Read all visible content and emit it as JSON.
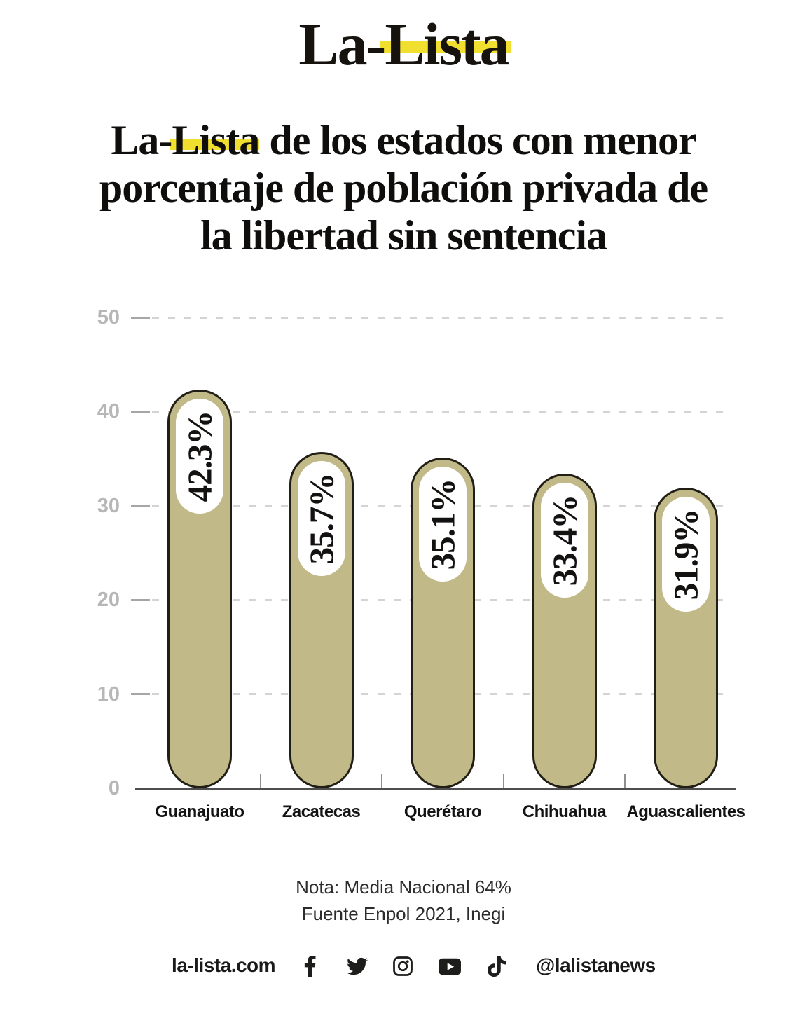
{
  "logo": {
    "text": "La-Lista",
    "highlight_color": "#f1df2f"
  },
  "title": {
    "highlight_word": "La-Lista",
    "line1_rest": " de los estados con menor",
    "line2": "porcentaje de población privada de",
    "line3": "la libertad sin sentencia"
  },
  "chart_data": {
    "type": "bar",
    "categories": [
      "Guanajuato",
      "Zacatecas",
      "Querétaro",
      "Chihuahua",
      "Aguascalientes"
    ],
    "values": [
      42.3,
      35.7,
      35.1,
      33.4,
      31.9
    ],
    "value_labels": [
      "42.3%",
      "35.7%",
      "35.1%",
      "33.4%",
      "31.9%"
    ],
    "title": "La-Lista de los estados con menor porcentaje de población privada de la libertad sin sentencia",
    "xlabel": "",
    "ylabel": "",
    "ylim": [
      0,
      50
    ],
    "yticks": [
      0,
      10,
      20,
      30,
      40,
      50
    ],
    "grid": "dashed horizontal gridlines, legend none",
    "bar_color": "#c1ba88",
    "bar_outline_color": "#211e15",
    "value_pill_color": "#ffffff"
  },
  "notes": {
    "line1": "Nota: Media Nacional 64%",
    "line2": "Fuente Enpol 2021, Inegi"
  },
  "footer": {
    "website": "la-lista.com",
    "handle": "@lalistanews",
    "icons": [
      "facebook",
      "twitter",
      "instagram",
      "youtube",
      "tiktok"
    ]
  }
}
